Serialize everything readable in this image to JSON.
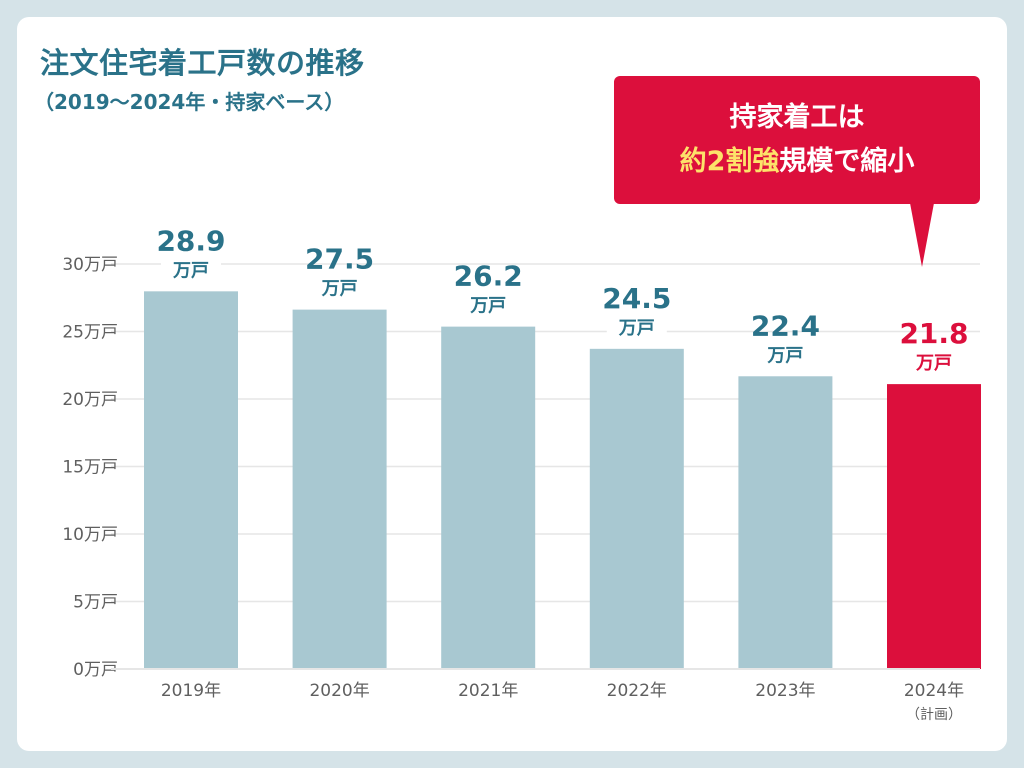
{
  "header": {
    "title": "注文住宅着工戸数の推移",
    "subtitle": "（2019〜2024年・持家ベース）"
  },
  "callout": {
    "line1": "持家着工は",
    "line2_highlight": "約2割強",
    "line2_rest": "規模で縮小"
  },
  "colors": {
    "background": "#d5e3e8",
    "title": "#2a7289",
    "bar_default": "#a8c8d1",
    "bar_highlight": "#dc0f3c",
    "label_default": "#2a7289",
    "label_highlight": "#dc0f3c",
    "callout_highlight_text": "#fde26a",
    "gridline": "#e6e6e6",
    "tick_text": "#5f5f5f"
  },
  "chart_data": {
    "type": "bar",
    "title": "注文住宅着工戸数の推移",
    "subtitle": "（2019〜2024年・持家ベース）",
    "categories": [
      "2019年",
      "2020年",
      "2021年",
      "2022年",
      "2023年",
      "2024年"
    ],
    "category_sublabels": [
      "",
      "",
      "",
      "",
      "",
      "（計画）"
    ],
    "values": [
      28.9,
      27.5,
      26.2,
      24.5,
      22.4,
      21.8
    ],
    "unit_label": "万戸",
    "highlight_index": 5,
    "xlabel": "",
    "ylabel": "",
    "ylim": [
      0,
      30
    ],
    "yticks": [
      0,
      5,
      10,
      15,
      20,
      25,
      30
    ],
    "ytick_labels": [
      "0万戸",
      "5万戸",
      "10万戸",
      "15万戸",
      "20万戸",
      "25万戸",
      "30万戸"
    ],
    "grid": true,
    "legend": "none"
  }
}
